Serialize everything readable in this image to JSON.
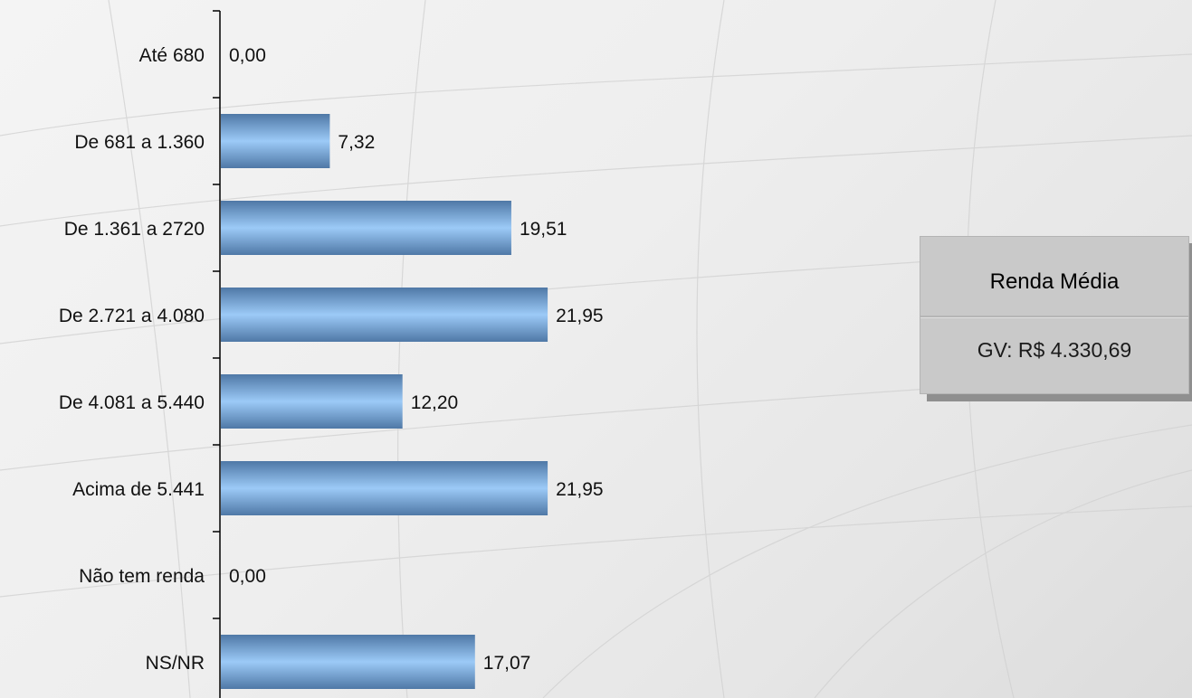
{
  "chart_data": {
    "type": "bar",
    "orientation": "horizontal",
    "categories": [
      "Até 680",
      "De 681 a 1.360",
      "De 1.361 a 2720",
      "De 2.721 a 4.080",
      "De 4.081 a 5.440",
      "Acima de 5.441",
      "Não tem renda",
      "NS/NR"
    ],
    "values": [
      0.0,
      7.32,
      19.51,
      21.95,
      12.2,
      21.95,
      0.0,
      17.07
    ],
    "value_labels": [
      "0,00",
      "7,32",
      "19,51",
      "21,95",
      "12,20",
      "21,95",
      "0,00",
      "17,07"
    ],
    "xlim": [
      0,
      22
    ],
    "grid": false,
    "bar_color": "#8ec0f0"
  },
  "info_box": {
    "title": "Renda Média",
    "value": "GV: R$ 4.330,69"
  }
}
